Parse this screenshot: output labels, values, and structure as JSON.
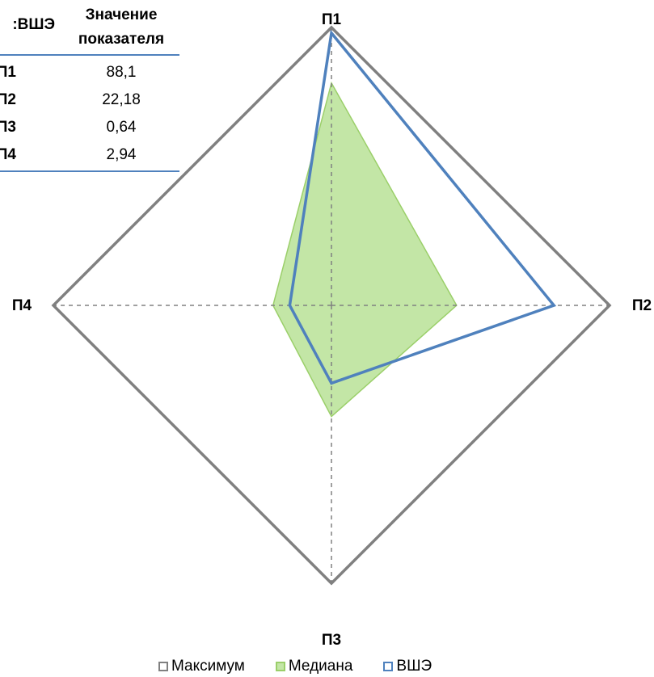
{
  "table": {
    "col1_header": "ВШЭ:",
    "col2_header": "Значение показателя",
    "rows": [
      {
        "label": "П1",
        "value": "88,1"
      },
      {
        "label": "П2",
        "value": "22,18"
      },
      {
        "label": "П3",
        "value": "0,64"
      },
      {
        "label": "П4",
        "value": "2,94"
      }
    ]
  },
  "chart_data": {
    "type": "radar",
    "axes": [
      "П1",
      "П2",
      "П3",
      "П4"
    ],
    "range": [
      0,
      1
    ],
    "series": [
      {
        "name": "Максимум",
        "values": [
          1.0,
          1.0,
          1.0,
          1.0
        ],
        "color": "#808080",
        "fill": null
      },
      {
        "name": "Медиана",
        "values": [
          0.8,
          0.45,
          0.4,
          0.21
        ],
        "color": "#9bcf6a",
        "fill": "#c3e6a6"
      },
      {
        "name": "ВШЭ",
        "values": [
          0.98,
          0.8,
          0.28,
          0.15
        ],
        "color": "#4f81bd",
        "fill": null
      }
    ],
    "gridlines": "dashed",
    "legend_position": "bottom"
  },
  "legend": {
    "items": [
      {
        "label": "Максимум",
        "color": "#808080",
        "fill": "#ffffff"
      },
      {
        "label": "Медиана",
        "color": "#9bcf6a",
        "fill": "#c3e6a6"
      },
      {
        "label": "ВШЭ",
        "color": "#4f81bd",
        "fill": "#ffffff"
      }
    ]
  }
}
